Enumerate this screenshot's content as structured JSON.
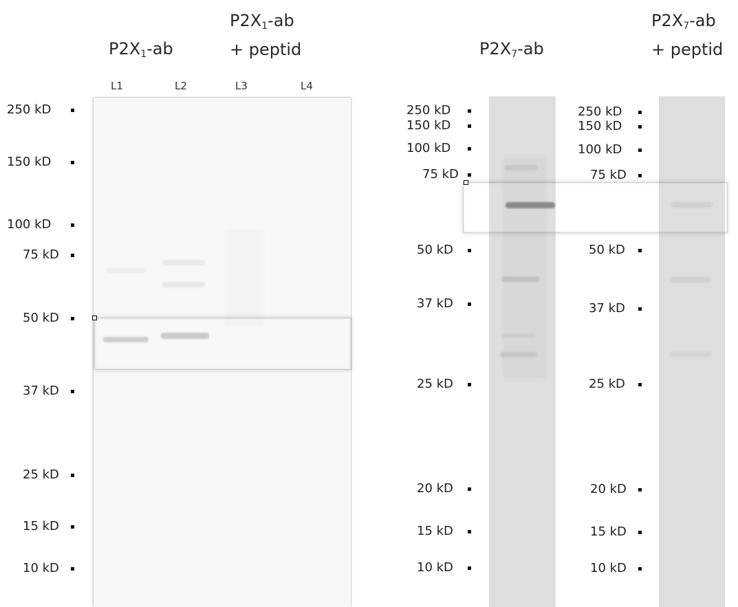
{
  "panel1": {
    "header_left": {
      "main": "P2X",
      "sub": "1",
      "suffix": "-ab"
    },
    "header_right": {
      "line1_main": "P2X",
      "line1_sub": "1",
      "line1_suffix": "-ab",
      "line2": "+ peptid"
    },
    "lanes": [
      "L1",
      "L2",
      "L3",
      "L4"
    ],
    "markers": [
      "250 kD",
      "150 kD",
      "100 kD",
      "75 kD",
      "50 kD",
      "37 kD",
      "25 kD",
      "15 kD",
      "10 kD"
    ]
  },
  "panel2": {
    "header_left": {
      "main": "P2X",
      "sub": "7",
      "suffix": "-ab"
    },
    "header_right": {
      "line1_main": "P2X",
      "line1_sub": "7",
      "line1_suffix": "-ab",
      "line2": "+ peptid"
    },
    "markers_a": [
      "250 kD",
      "150 kD",
      "100 kD",
      "75 kD",
      "50 kD",
      "37 kD",
      "25 kD",
      "20 kD",
      "15 kD",
      "10 kD"
    ],
    "markers_b": [
      "250 kD",
      "150 kD",
      "100 kD",
      "75 kD",
      "50 kD",
      "37 kD",
      "25 kD",
      "20 kD",
      "15 kD",
      "10 kD"
    ]
  },
  "colors": {
    "blot1_bg": "#f8f8f8",
    "strip_bg": "#dedede",
    "text": "#2a2a2a"
  }
}
